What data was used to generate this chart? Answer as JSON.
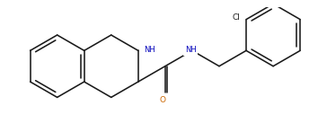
{
  "background_color": "#ffffff",
  "line_color": "#1a1a1a",
  "color_NH": "#0000bb",
  "color_O": "#cc6600",
  "color_Cl": "#1a1a1a",
  "figsize": [
    3.54,
    1.37
  ],
  "dpi": 100,
  "lw": 1.15,
  "xlim": [
    0.3,
    10.5
  ],
  "ylim": [
    0.4,
    3.9
  ]
}
